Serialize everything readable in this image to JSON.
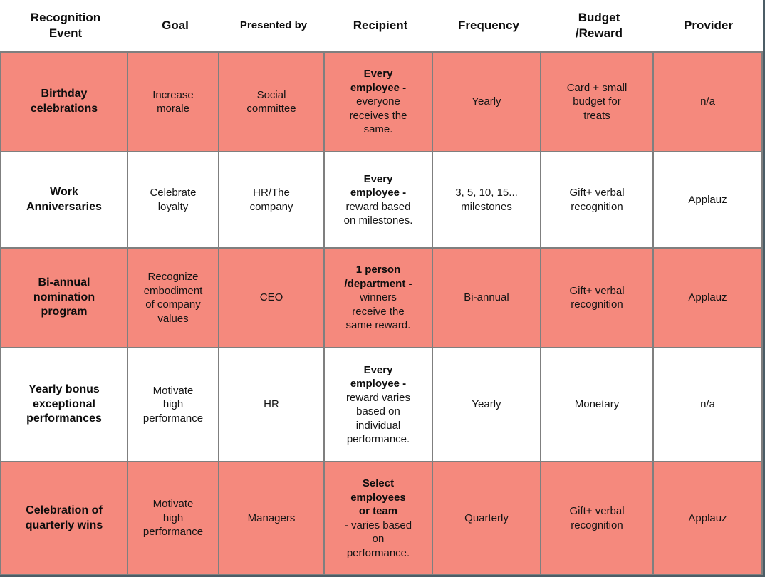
{
  "colors": {
    "highlight_row_bg": "#f5897d",
    "plain_row_bg": "#ffffff",
    "grid_border": "#7f7f7f",
    "page_edge": "#4c5d66",
    "text": "#141414"
  },
  "header": {
    "labels": [
      "Recognition\nEvent",
      "Goal",
      "Presented by",
      "Recipient",
      "Frequency",
      "Budget\n/Reward",
      "Provider"
    ]
  },
  "rows": [
    {
      "event": "Birthday\ncelebrations",
      "goal": "Increase\nmorale",
      "presented_by": "Social\ncommittee",
      "recipient_bold": "Every\nemployee -",
      "recipient_rest": "\neveryone\nreceives the\nsame.",
      "frequency": "Yearly",
      "budget_reward": "Card + small\nbudget for\ntreats",
      "provider": "n/a",
      "highlighted": true
    },
    {
      "event": "Work\nAnniversaries",
      "goal": "Celebrate\nloyalty",
      "presented_by": "HR/The\ncompany",
      "recipient_bold": "Every\nemployee -",
      "recipient_rest": "\nreward based\non milestones.",
      "frequency": "3, 5, 10, 15...\nmilestones",
      "budget_reward": "Gift+ verbal\nrecognition",
      "provider": "Applauz",
      "highlighted": false
    },
    {
      "event": "Bi-annual\nnomination\nprogram",
      "goal": "Recognize\nembodiment\nof company\nvalues",
      "presented_by": "CEO",
      "recipient_bold": "1 person\n/department -",
      "recipient_rest": "\nwinners\nreceive the\nsame reward.",
      "frequency": "Bi-annual",
      "budget_reward": "Gift+ verbal\nrecognition",
      "provider": "Applauz",
      "highlighted": true
    },
    {
      "event": "Yearly bonus\nexceptional\nperformances",
      "goal": "Motivate\nhigh\nperformance",
      "presented_by": "HR",
      "recipient_bold": "Every\nemployee -",
      "recipient_rest": "\nreward varies\nbased on\nindividual\nperformance.",
      "frequency": "Yearly",
      "budget_reward": "Monetary",
      "provider": "n/a",
      "highlighted": false
    },
    {
      "event": "Celebration of\nquarterly wins",
      "goal": "Motivate\nhigh\nperformance",
      "presented_by": "Managers",
      "recipient_bold": "Select\nemployees\nor team",
      "recipient_rest": "\n- varies based\non\nperformance.",
      "frequency": "Quarterly",
      "budget_reward": "Gift+ verbal\nrecognition",
      "provider": "Applauz",
      "highlighted": true
    }
  ]
}
